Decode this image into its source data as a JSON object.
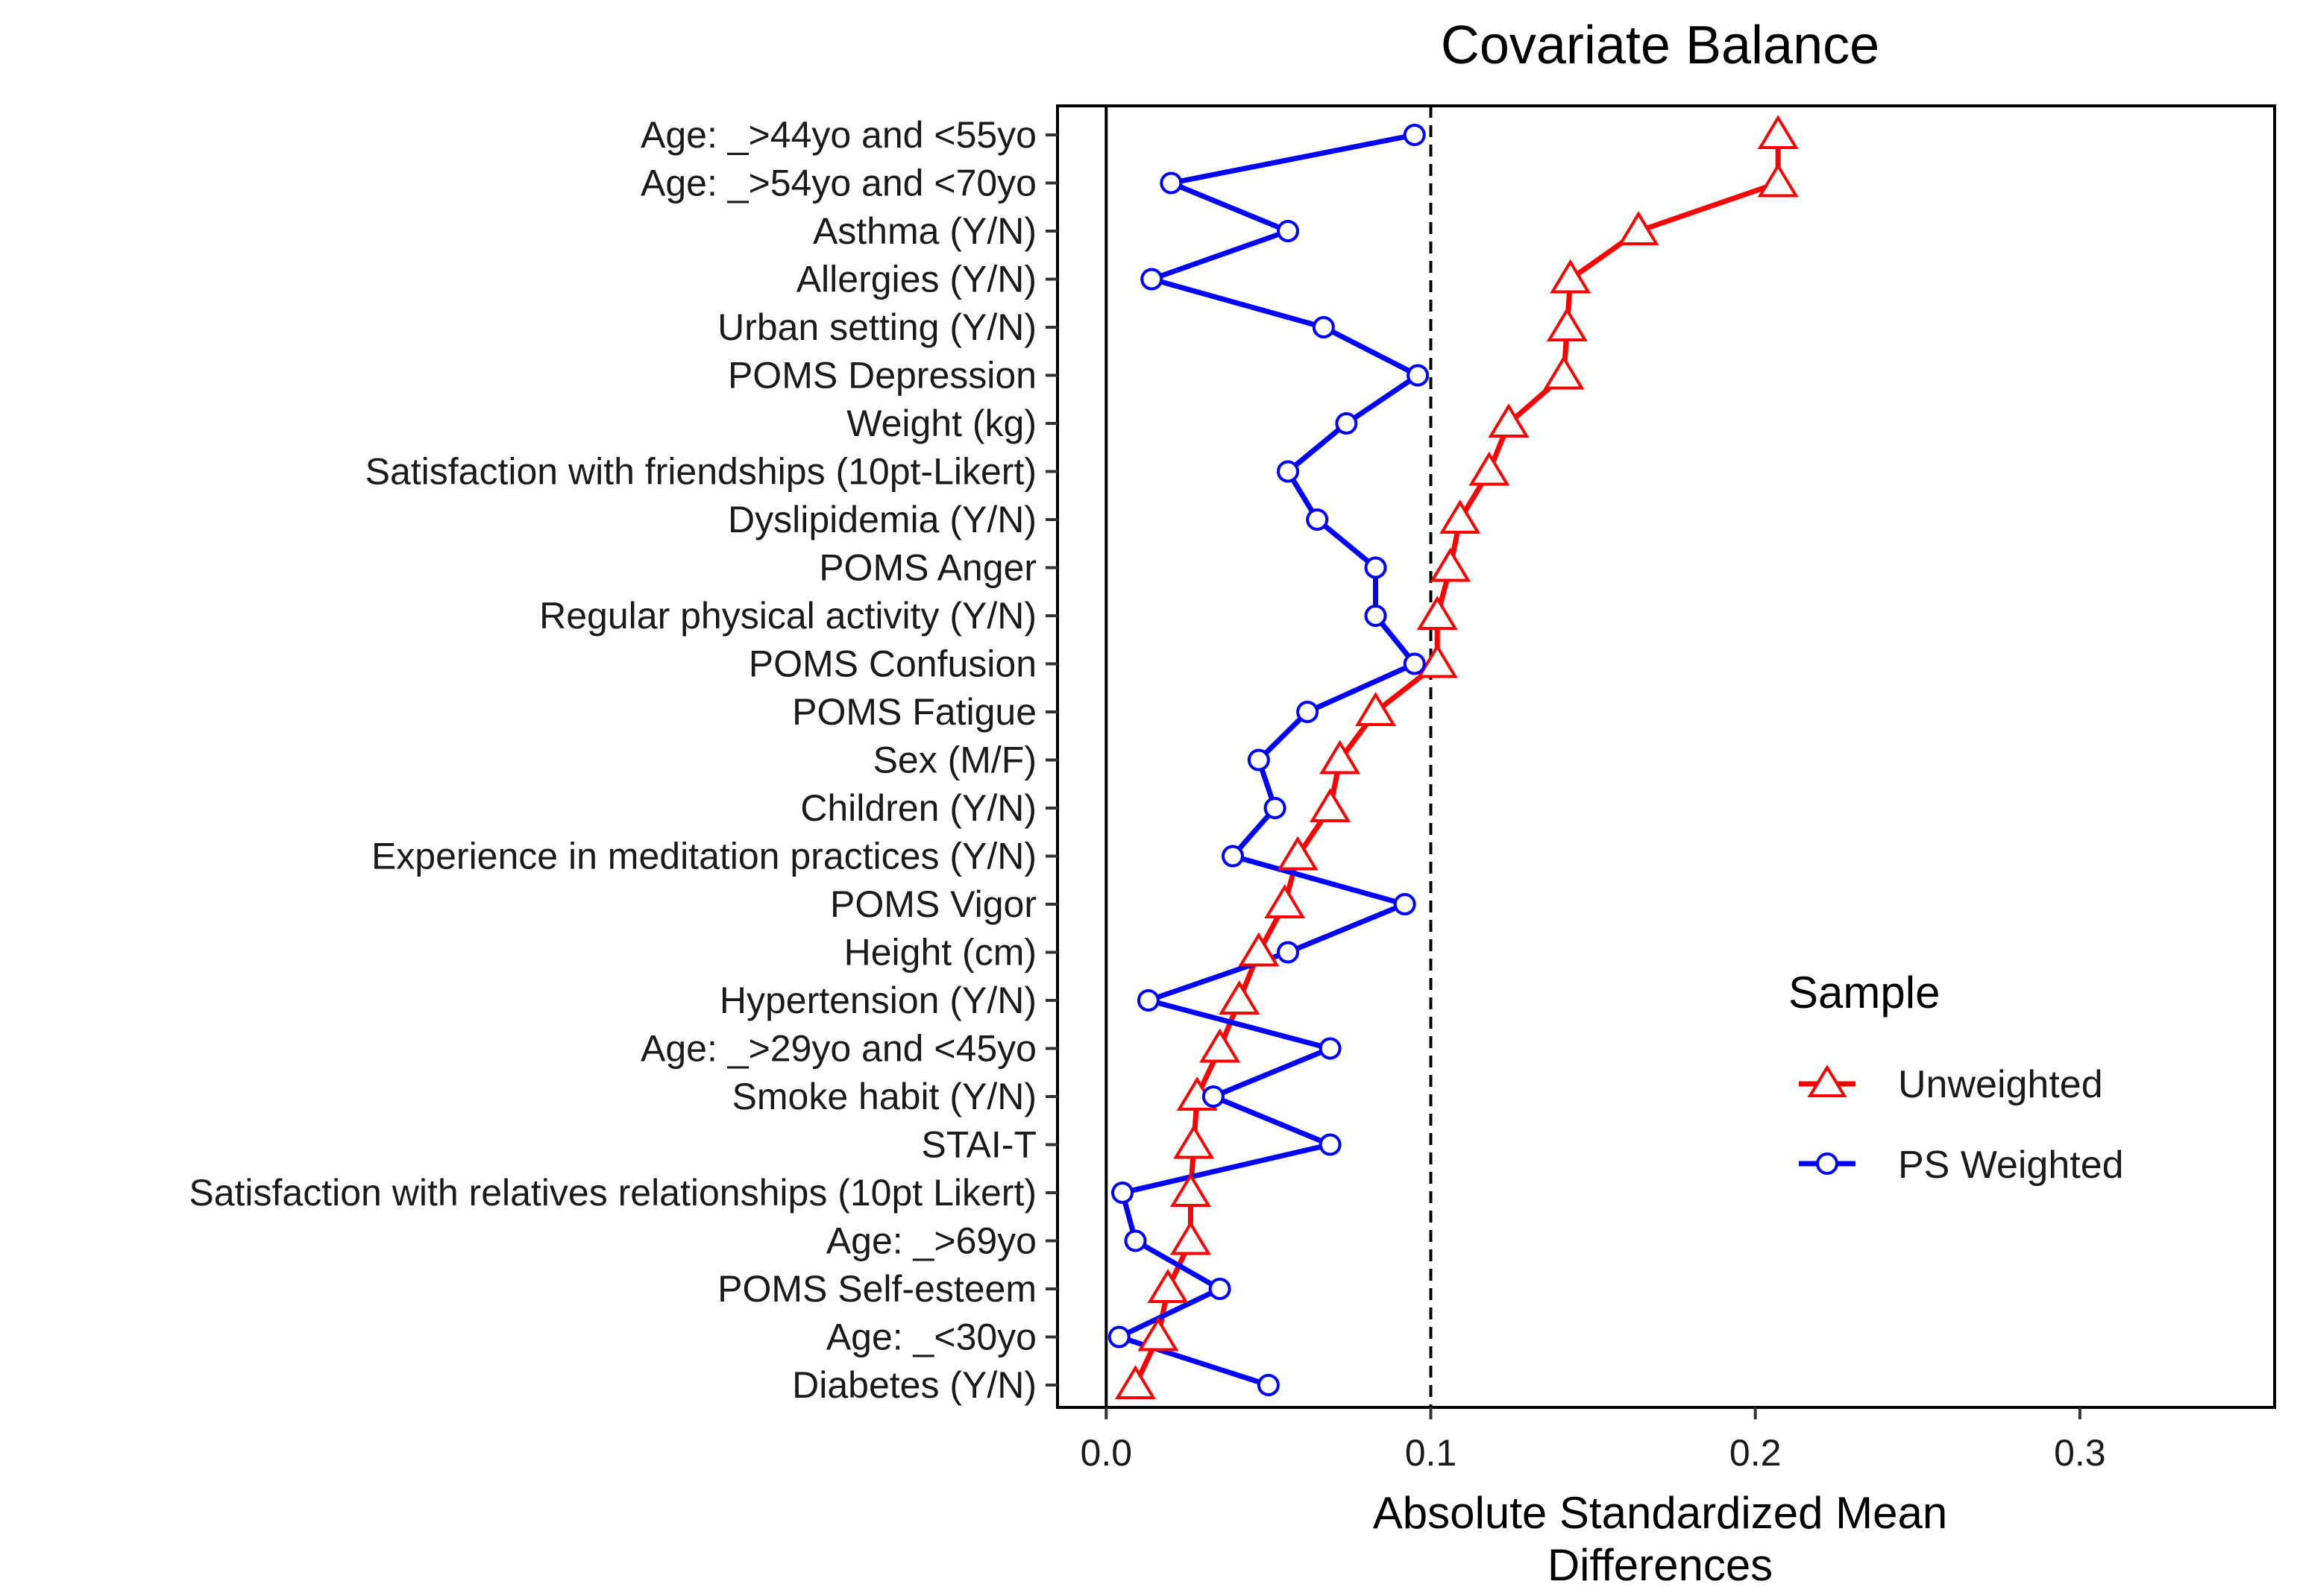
{
  "chart_data": {
    "type": "line",
    "title": "Covariate Balance",
    "xlabel_line1": "Absolute Standardized Mean",
    "xlabel_line2": "Differences",
    "xlim": [
      -0.015,
      0.36
    ],
    "x_ticks": [
      0.0,
      0.1,
      0.2,
      0.3
    ],
    "x_tick_labels": [
      "0.0",
      "0.1",
      "0.2",
      "0.3"
    ],
    "threshold": 0.1,
    "threshold_style": "dashed",
    "zero_line": true,
    "grid": false,
    "legend": {
      "title": "Sample",
      "placement": "right",
      "entries": [
        "Unweighted",
        "PS Weighted"
      ]
    },
    "categories": [
      "Age: _>44yo and <55yo",
      "Age: _>54yo and <70yo",
      "Asthma (Y/N)",
      "Allergies (Y/N)",
      "Urban setting (Y/N)",
      "POMS Depression",
      "Weight (kg)",
      "Satisfaction with friendships (10pt-Likert)",
      "Dyslipidemia (Y/N)",
      "POMS Anger",
      "Regular physical activity (Y/N)",
      "POMS Confusion",
      "POMS Fatigue",
      "Sex (M/F)",
      "Children (Y/N)",
      "Experience in meditation practices (Y/N)",
      "POMS Vigor",
      "Height (cm)",
      "Hypertension (Y/N)",
      "Age: _>29yo and <45yo",
      "Smoke habit (Y/N)",
      "STAI-T",
      "Satisfaction with relatives relationships (10pt Likert)",
      "Age: _>69yo",
      "POMS Self-esteem",
      "Age: _<30yo",
      "Diabetes (Y/N)"
    ],
    "series": [
      {
        "name": "Unweighted",
        "color": "#ff0000",
        "marker": "triangle-open",
        "values": [
          0.207,
          0.207,
          0.164,
          0.143,
          0.142,
          0.141,
          0.124,
          0.118,
          0.109,
          0.106,
          0.102,
          0.102,
          0.083,
          0.072,
          0.069,
          0.059,
          0.055,
          0.047,
          0.041,
          0.035,
          0.028,
          0.027,
          0.026,
          0.026,
          0.019,
          0.016,
          0.009
        ]
      },
      {
        "name": "PS Weighted",
        "color": "#0000ff",
        "marker": "circle-open",
        "values": [
          0.095,
          0.02,
          0.056,
          0.014,
          0.067,
          0.096,
          0.074,
          0.056,
          0.065,
          0.083,
          0.083,
          0.095,
          0.062,
          0.047,
          0.052,
          0.039,
          0.092,
          0.056,
          0.013,
          0.069,
          0.033,
          0.069,
          0.005,
          0.009,
          0.035,
          0.004,
          0.05
        ]
      }
    ]
  }
}
